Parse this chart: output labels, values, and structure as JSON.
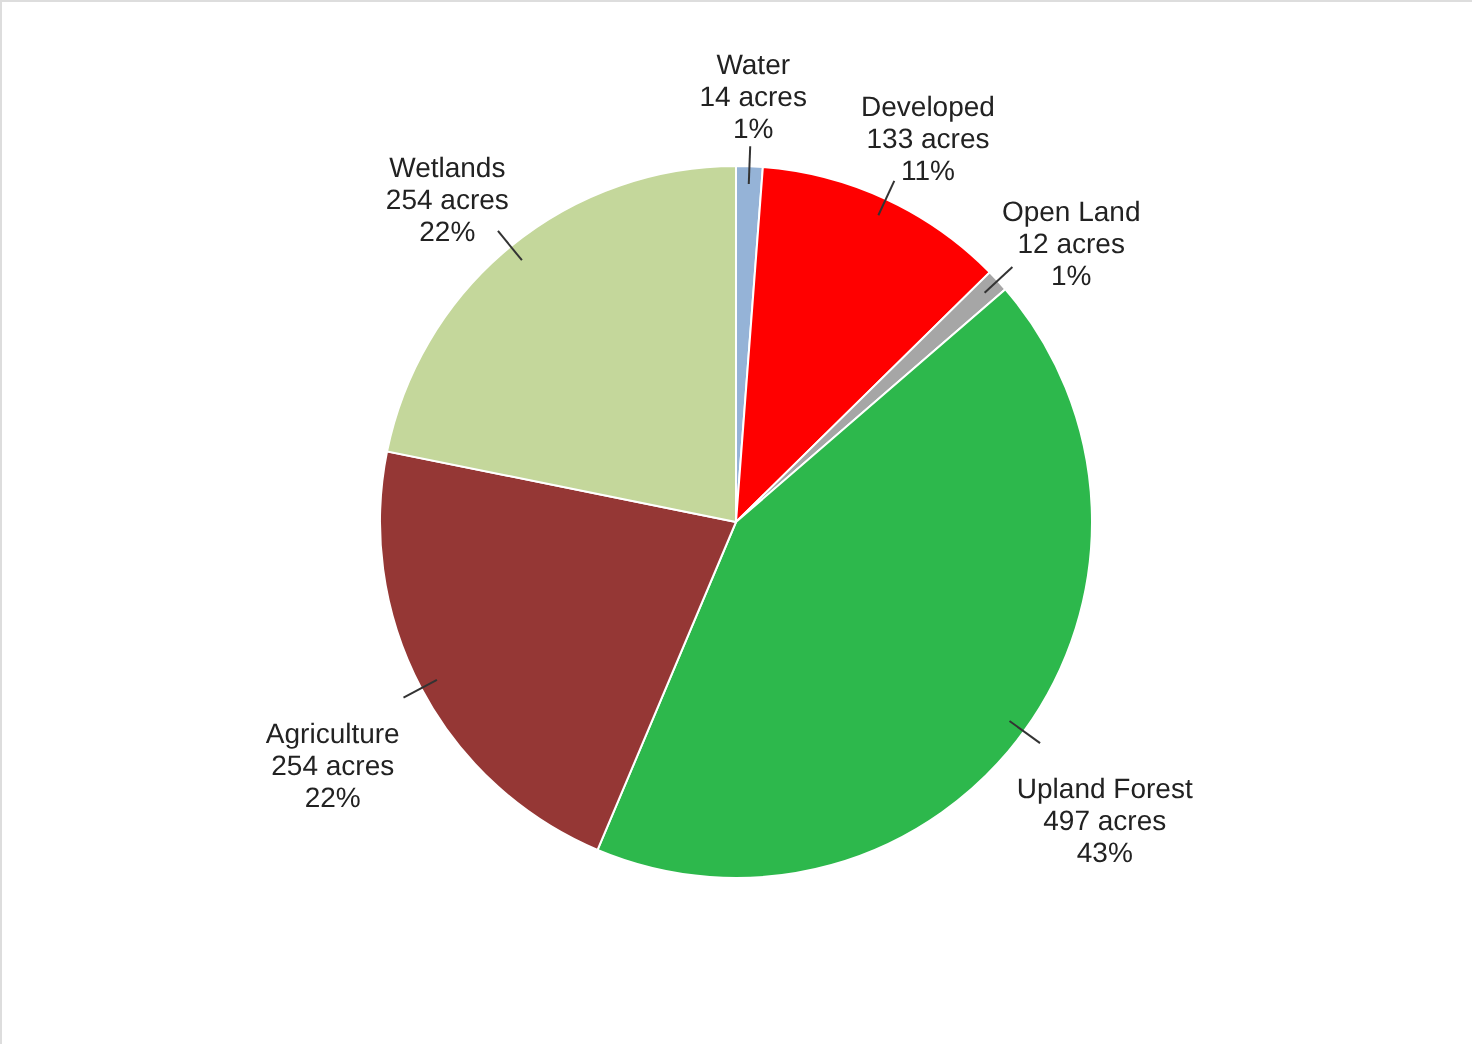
{
  "chart_data": {
    "type": "pie",
    "categories": [
      "Water",
      "Developed",
      "Open Land",
      "Upland Forest",
      "Agriculture",
      "Wetlands"
    ],
    "values": [
      14,
      133,
      12,
      497,
      254,
      254
    ],
    "colors": [
      "#95b3d7",
      "#ff0000",
      "#a6a6a6",
      "#2db84c",
      "#953735",
      "#c4d79b"
    ],
    "value_labels": [
      "14 acres\n1%",
      "133 acres\n11%",
      "12 acres\n1%",
      "497 acres\n43%",
      "254 acres\n22%",
      "254 acres\n22%"
    ],
    "legend": false
  }
}
